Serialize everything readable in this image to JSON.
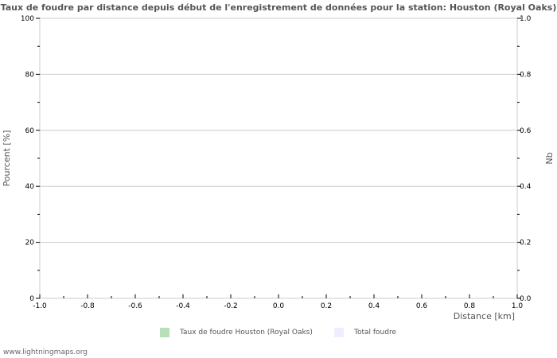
{
  "chart_data": {
    "type": "bar",
    "title": "Taux de foudre par distance depuis début de l'enregistrement de données pour la station: Houston (Royal Oaks)",
    "xlabel": "Distance   [km]",
    "ylabel_left": "Pourcent   [%]",
    "ylabel_right": "Nb",
    "xlim": [
      -1.0,
      1.0
    ],
    "ylim_left": [
      0,
      100
    ],
    "ylim_right": [
      0.0,
      1.0
    ],
    "x_ticks": [
      "-1.0",
      "-0.8",
      "-0.6",
      "-0.4",
      "-0.2",
      "0.0",
      "0.2",
      "0.4",
      "0.6",
      "0.8",
      "1.0"
    ],
    "y_left_ticks": [
      "0",
      "20",
      "40",
      "60",
      "80",
      "100"
    ],
    "y_right_ticks": [
      "0.0",
      "0.2",
      "0.4",
      "0.6",
      "0.8",
      "1.0"
    ],
    "grid": true,
    "legend_position": "bottom",
    "series": [
      {
        "name": "Taux de foudre Houston (Royal Oaks)",
        "color": "#b8e0b8",
        "values": []
      },
      {
        "name": "Total foudre",
        "color": "#eeeeff",
        "values": []
      }
    ]
  },
  "legend": {
    "item1": "Taux de foudre Houston (Royal Oaks)",
    "item2": "Total foudre"
  },
  "footer": "www.lightningmaps.org"
}
